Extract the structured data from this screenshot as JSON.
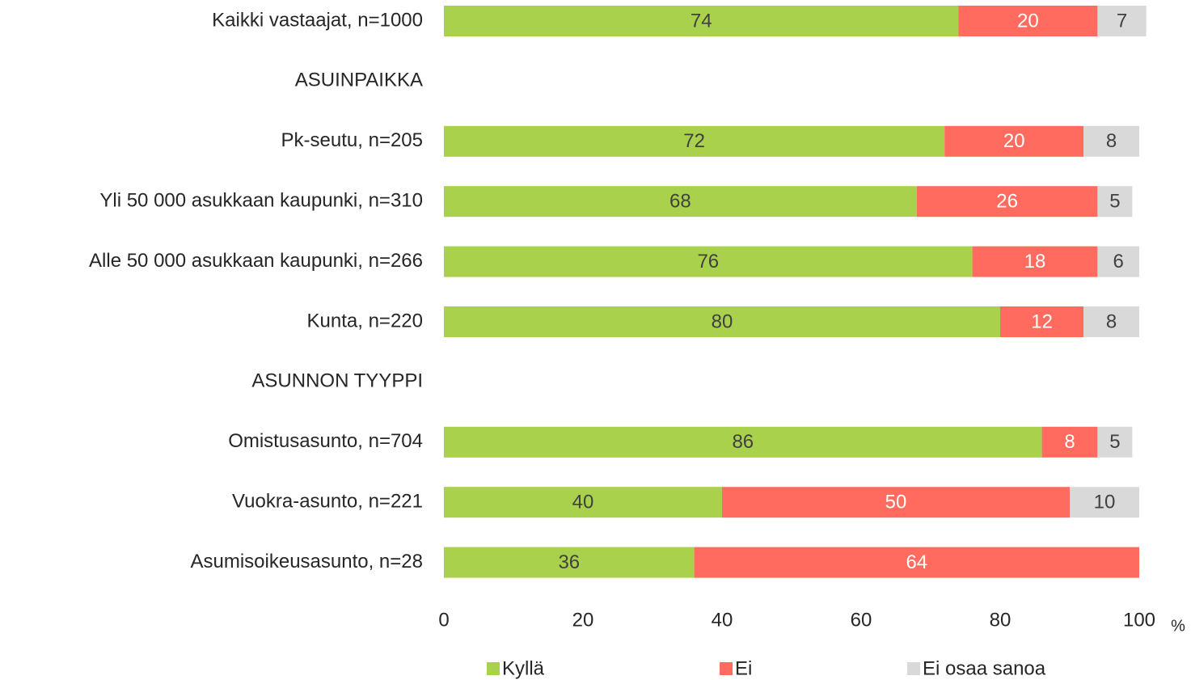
{
  "chart_data": {
    "type": "stacked-bar-horizontal",
    "categories": [
      "Kaikki vastaajat, n=1000",
      "ASUINPAIKKA",
      "Pk-seutu, n=205",
      "Yli 50 000 asukkaan kaupunki, n=310",
      "Alle 50 000 asukkaan kaupunki, n=266",
      "Kunta, n=220",
      "ASUNNON TYYPPI",
      "Omistusasunto, n=704",
      "Vuokra-asunto, n=221",
      "Asumisoikeusasunto, n=28"
    ],
    "series": [
      {
        "name": "Kyllä",
        "color": "#a9d14b",
        "values": [
          74,
          null,
          72,
          68,
          76,
          80,
          null,
          86,
          40,
          36
        ]
      },
      {
        "name": "Ei",
        "color": "#ff6b5f",
        "values": [
          20,
          null,
          20,
          26,
          18,
          12,
          null,
          8,
          50,
          64
        ]
      },
      {
        "name": "Ei osaa sanoa",
        "color": "#d9d9d9",
        "values": [
          7,
          null,
          8,
          5,
          6,
          8,
          null,
          5,
          10,
          null
        ]
      }
    ],
    "xlim": [
      0,
      100
    ],
    "xticks": [
      0,
      20,
      40,
      60,
      80,
      100
    ],
    "xlabel": "%",
    "grid": false,
    "legend": "bottom"
  }
}
